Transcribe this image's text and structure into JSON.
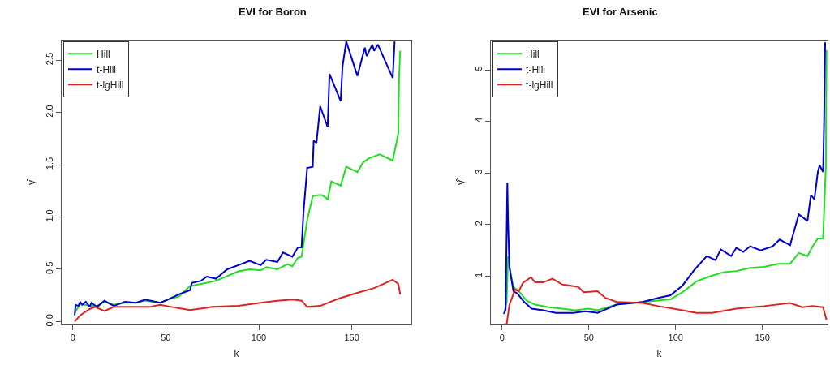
{
  "chart_data": [
    {
      "type": "line",
      "title": "EVI for Boron",
      "xlabel": "k",
      "ylabel": "γ̂",
      "xlim": [
        -6,
        182
      ],
      "ylim": [
        -0.03,
        2.69
      ],
      "xticks": [
        0,
        50,
        100,
        150
      ],
      "yticks": [
        {
          "value": 0,
          "label": "0.0"
        },
        {
          "value": 0.5,
          "label": "0.5"
        },
        {
          "value": 1,
          "label": "1.0"
        },
        {
          "value": 1.5,
          "label": "1.5"
        },
        {
          "value": 2,
          "label": "2.0"
        },
        {
          "value": 2.5,
          "label": "2.5"
        }
      ],
      "legend": "top left",
      "marker": "none",
      "line_style": "solid",
      "series": [
        {
          "name": "Hill",
          "color": "#22dd22",
          "x": [
            1,
            4,
            9,
            13,
            17,
            22,
            28,
            34,
            39,
            47,
            51,
            57,
            63,
            69,
            77,
            89,
            95,
            101,
            104,
            110,
            115.5,
            118,
            121,
            123,
            126,
            129,
            132,
            134,
            137,
            139,
            144,
            147,
            153,
            156,
            159,
            165,
            172,
            175,
            175.4,
            176
          ],
          "values": [
            0.08,
            0.17,
            0.15,
            0.15,
            0.19,
            0.16,
            0.18,
            0.18,
            0.2,
            0.18,
            0.21,
            0.24,
            0.34,
            0.36,
            0.39,
            0.48,
            0.5,
            0.49,
            0.52,
            0.5,
            0.55,
            0.53,
            0.61,
            0.62,
            0.97,
            1.2,
            1.21,
            1.21,
            1.17,
            1.34,
            1.3,
            1.48,
            1.43,
            1.52,
            1.56,
            1.6,
            1.54,
            1.8,
            2.33,
            2.59
          ]
        },
        {
          "name": "t-Hill",
          "color": "#0000cc",
          "x": [
            1,
            1.5,
            3,
            4,
            5,
            7,
            9,
            10,
            13,
            17,
            22,
            28,
            34,
            39,
            47,
            51,
            57,
            63,
            64,
            69,
            72,
            77,
            83,
            89,
            95,
            101,
            104,
            110,
            113,
            118,
            121,
            123,
            124,
            126,
            129,
            129.5,
            131,
            133,
            137,
            138,
            144,
            145,
            147,
            153,
            157,
            158,
            161,
            162,
            164,
            172,
            173
          ],
          "values": [
            0.06,
            0.16,
            0.15,
            0.19,
            0.16,
            0.19,
            0.14,
            0.18,
            0.14,
            0.2,
            0.15,
            0.19,
            0.18,
            0.21,
            0.18,
            0.21,
            0.26,
            0.3,
            0.37,
            0.39,
            0.43,
            0.41,
            0.5,
            0.54,
            0.58,
            0.54,
            0.59,
            0.57,
            0.66,
            0.62,
            0.71,
            0.71,
            1.04,
            1.47,
            1.48,
            1.73,
            1.71,
            2.06,
            1.86,
            2.37,
            2.11,
            2.44,
            2.68,
            2.35,
            2.62,
            2.54,
            2.65,
            2.59,
            2.65,
            2.33,
            2.68
          ]
        },
        {
          "name": "t-lgHill",
          "color": "#dd2222",
          "x": [
            1,
            4,
            9,
            12,
            17,
            22,
            31,
            41,
            47,
            53,
            63,
            75,
            89,
            101,
            110,
            118,
            123,
            126,
            133,
            143,
            154,
            162,
            172,
            175,
            176
          ],
          "values": [
            0.0,
            0.06,
            0.12,
            0.14,
            0.1,
            0.14,
            0.14,
            0.14,
            0.16,
            0.14,
            0.11,
            0.14,
            0.15,
            0.18,
            0.2,
            0.21,
            0.2,
            0.14,
            0.15,
            0.22,
            0.28,
            0.32,
            0.4,
            0.36,
            0.26
          ]
        }
      ]
    },
    {
      "type": "line",
      "title": "EVI for Arsenic",
      "xlabel": "k",
      "ylabel": "γ̂",
      "xlim": [
        -6.5,
        187.6
      ],
      "ylim": [
        0.06,
        5.57
      ],
      "xticks": [
        0,
        50,
        100,
        150
      ],
      "yticks": [
        1,
        2,
        3,
        4,
        5
      ],
      "legend": "top left",
      "marker": "none",
      "line_style": "solid",
      "series": [
        {
          "name": "Hill",
          "color": "#22dd22",
          "x": [
            1,
            2.6,
            3.4,
            5,
            6.5,
            9.6,
            14,
            19,
            27,
            34.5,
            42,
            50,
            55,
            66,
            81,
            97,
            104,
            112,
            120,
            128,
            135,
            143,
            151,
            159,
            166,
            171,
            176,
            179,
            182,
            185,
            186.6,
            187
          ],
          "values": [
            0.27,
            0.5,
            1.39,
            1.03,
            0.79,
            0.71,
            0.53,
            0.45,
            0.4,
            0.37,
            0.34,
            0.37,
            0.34,
            0.45,
            0.5,
            0.55,
            0.69,
            0.9,
            1.0,
            1.08,
            1.1,
            1.16,
            1.18,
            1.24,
            1.24,
            1.45,
            1.39,
            1.58,
            1.73,
            1.73,
            3.12,
            5.38
          ]
        },
        {
          "name": "t-Hill",
          "color": "#0000cc",
          "x": [
            1,
            2,
            2.3,
            3,
            3.4,
            4.2,
            5.3,
            6.5,
            8.9,
            12.7,
            17,
            23.6,
            31,
            41,
            48,
            55,
            66,
            81,
            90,
            97,
            104,
            111,
            118,
            123,
            126,
            132,
            135,
            139,
            143,
            149,
            156,
            160,
            166,
            171,
            176,
            178,
            180,
            182,
            183,
            185,
            185.6,
            186.2
          ],
          "values": [
            0.27,
            0.34,
            1.13,
            2.81,
            2.07,
            1.18,
            0.95,
            0.71,
            0.66,
            0.5,
            0.37,
            0.34,
            0.29,
            0.29,
            0.32,
            0.29,
            0.45,
            0.5,
            0.58,
            0.63,
            0.82,
            1.13,
            1.39,
            1.31,
            1.52,
            1.39,
            1.55,
            1.47,
            1.58,
            1.5,
            1.58,
            1.71,
            1.6,
            2.2,
            2.07,
            2.57,
            2.49,
            3.02,
            3.15,
            3.02,
            4.01,
            5.53
          ]
        },
        {
          "name": "t-lgHill",
          "color": "#dd2222",
          "x": [
            1,
            2.6,
            4.2,
            5.7,
            7.3,
            9.6,
            12,
            16.6,
            19,
            23.6,
            29,
            34.5,
            39,
            44,
            47,
            55,
            59.5,
            66,
            81,
            90,
            104,
            112,
            121,
            135,
            151,
            166,
            173,
            179,
            185,
            187
          ],
          "values": [
            0.07,
            0.07,
            0.45,
            0.58,
            0.74,
            0.71,
            0.87,
            0.98,
            0.88,
            0.88,
            0.95,
            0.84,
            0.82,
            0.79,
            0.69,
            0.71,
            0.58,
            0.5,
            0.48,
            0.42,
            0.34,
            0.29,
            0.29,
            0.37,
            0.42,
            0.48,
            0.4,
            0.42,
            0.4,
            0.15
          ]
        }
      ]
    }
  ]
}
